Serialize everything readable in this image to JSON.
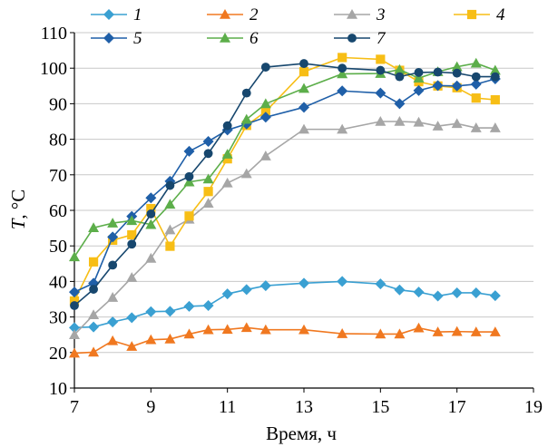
{
  "chart_data": {
    "type": "line",
    "xlabel": "Время, ч",
    "ylabel_var": "T",
    "ylabel_unit": ", °C",
    "xlim": [
      7,
      19
    ],
    "ylim": [
      10,
      110
    ],
    "xticks": [
      7,
      9,
      11,
      13,
      15,
      17,
      19
    ],
    "yticks": [
      10,
      20,
      30,
      40,
      50,
      60,
      70,
      80,
      90,
      100,
      110
    ],
    "x": [
      7,
      7.5,
      8,
      8.5,
      9,
      9.5,
      10,
      10.5,
      11,
      11.5,
      12,
      13,
      14,
      15,
      15.5,
      16,
      16.5,
      17,
      17.5,
      18
    ],
    "legend_position": "top",
    "series": [
      {
        "name": "1",
        "color": "#3aa0d2",
        "marker": "diamond",
        "values": [
          27,
          27.2,
          28.6,
          29.8,
          31.5,
          31.6,
          33,
          33.2,
          36.5,
          37.7,
          38.8,
          39.5,
          40,
          39.3,
          37.6,
          37,
          35.9,
          36.8,
          36.8,
          36
        ]
      },
      {
        "name": "2",
        "color": "#f07820",
        "marker": "triangle",
        "values": [
          19.8,
          20.1,
          23.3,
          21.7,
          23.6,
          23.8,
          25.2,
          26.4,
          26.5,
          27,
          26.4,
          26.4,
          25.3,
          25.2,
          25.2,
          26.9,
          25.8,
          25.9,
          25.8,
          25.8
        ]
      },
      {
        "name": "3",
        "color": "#a6a6a6",
        "marker": "triangle",
        "values": [
          25,
          30.6,
          35.5,
          41.1,
          46.5,
          54.5,
          57.5,
          62,
          67.7,
          70.3,
          75.3,
          82.8,
          82.8,
          85,
          85,
          84.8,
          83.7,
          84.4,
          83.2,
          83.2
        ]
      },
      {
        "name": "4",
        "color": "#f7be16",
        "marker": "square",
        "values": [
          34.5,
          45.5,
          51.6,
          53.1,
          60.5,
          49.9,
          58.4,
          65.3,
          74.5,
          83.9,
          87.8,
          99,
          103,
          102.5,
          99.4,
          96.2,
          95,
          94.5,
          91.6,
          91.1
        ]
      },
      {
        "name": "5",
        "color": "#1f5fa8",
        "marker": "diamond",
        "values": [
          37,
          39.5,
          52.5,
          58.3,
          63.5,
          68.2,
          76.6,
          79.4,
          82.6,
          84.3,
          86.2,
          89,
          93.6,
          93,
          90,
          93.7,
          95.1,
          95,
          95.5,
          97
        ]
      },
      {
        "name": "6",
        "color": "#5cae4a",
        "marker": "triangle",
        "values": [
          46.9,
          55.1,
          56.4,
          57.1,
          56,
          61.7,
          68,
          68.8,
          75.8,
          85.6,
          90,
          94.3,
          98.4,
          98.5,
          99.6,
          97.2,
          99,
          100.4,
          101.4,
          99.4
        ]
      },
      {
        "name": "7",
        "color": "#17476e",
        "marker": "circle",
        "values": [
          33.2,
          37.8,
          44.6,
          50.5,
          59,
          67,
          69.5,
          76,
          83.8,
          93,
          100.3,
          101.3,
          100,
          99.4,
          97.6,
          98.8,
          98.9,
          98.6,
          97.6,
          97.6
        ]
      }
    ]
  }
}
